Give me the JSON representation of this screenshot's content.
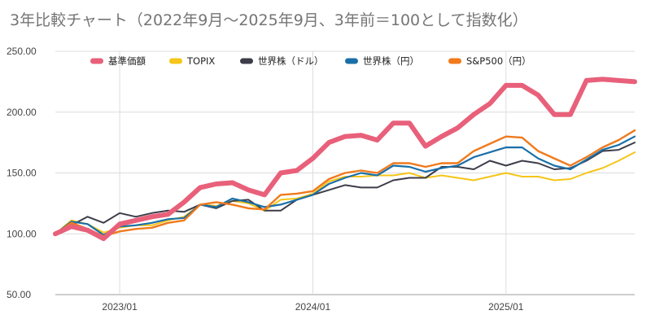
{
  "chart_data": {
    "type": "line",
    "title": "3年比較チャート（2022年9月～2025年9月、3年前＝100として指数化）",
    "xlabel": "",
    "ylabel": "",
    "ylim": [
      50,
      250
    ],
    "yticks": [
      "50.00",
      "100.00",
      "150.00",
      "200.00",
      "250.00"
    ],
    "xticks": [
      {
        "label": "2023/01",
        "x": "2023-01"
      },
      {
        "label": "2024/01",
        "x": "2024-01"
      },
      {
        "label": "2025/01",
        "x": "2025-01"
      }
    ],
    "grid": true,
    "legend_position": "top",
    "x": [
      "2022-09",
      "2022-10",
      "2022-11",
      "2022-12",
      "2023-01",
      "2023-02",
      "2023-03",
      "2023-04",
      "2023-05",
      "2023-06",
      "2023-07",
      "2023-08",
      "2023-09",
      "2023-10",
      "2023-11",
      "2023-12",
      "2024-01",
      "2024-02",
      "2024-03",
      "2024-04",
      "2024-05",
      "2024-06",
      "2024-07",
      "2024-08",
      "2024-09",
      "2024-10",
      "2024-11",
      "2024-12",
      "2025-01",
      "2025-02",
      "2025-03",
      "2025-04",
      "2025-05",
      "2025-06",
      "2025-07",
      "2025-08",
      "2025-09"
    ],
    "series": [
      {
        "name": "基準価額",
        "color": "#e8607a",
        "values": [
          100,
          106,
          103,
          96,
          108,
          111,
          114,
          116,
          126,
          138,
          141,
          142,
          136,
          132,
          150,
          152,
          162,
          175,
          180,
          181,
          177,
          191,
          191,
          172,
          180,
          187,
          198,
          207,
          222,
          222,
          214,
          198,
          198,
          226,
          227,
          226,
          225
        ]
      },
      {
        "name": "TOPIX",
        "color": "#f5c518",
        "values": [
          100,
          111,
          108,
          101,
          105,
          107,
          107,
          111,
          114,
          124,
          123,
          127,
          125,
          119,
          128,
          129,
          133,
          143,
          147,
          147,
          148,
          148,
          150,
          146,
          148,
          146,
          144,
          147,
          150,
          147,
          147,
          144,
          145,
          150,
          154,
          160,
          167
        ]
      },
      {
        "name": "世界株（ドル）",
        "color": "#3d3d4a",
        "values": [
          100,
          107,
          114,
          109,
          117,
          114,
          117,
          119,
          118,
          124,
          121,
          127,
          128,
          119,
          119,
          128,
          132,
          136,
          140,
          138,
          138,
          144,
          146,
          146,
          155,
          155,
          153,
          160,
          156,
          160,
          158,
          153,
          154,
          160,
          168,
          169,
          175
        ]
      },
      {
        "name": "世界株（円）",
        "color": "#1a6fa8",
        "values": [
          100,
          110,
          108,
          99,
          106,
          107,
          109,
          112,
          113,
          124,
          122,
          129,
          126,
          122,
          124,
          128,
          132,
          141,
          146,
          150,
          148,
          156,
          155,
          151,
          154,
          156,
          163,
          167,
          171,
          171,
          162,
          156,
          153,
          161,
          169,
          173,
          180
        ]
      },
      {
        "name": "S&P500（円）",
        "color": "#f07a1c",
        "values": [
          100,
          109,
          104,
          98,
          102,
          104,
          105,
          109,
          111,
          124,
          126,
          124,
          121,
          120,
          132,
          133,
          135,
          145,
          150,
          152,
          150,
          158,
          158,
          155,
          158,
          158,
          168,
          174,
          180,
          179,
          168,
          162,
          156,
          163,
          171,
          177,
          185
        ]
      }
    ]
  }
}
